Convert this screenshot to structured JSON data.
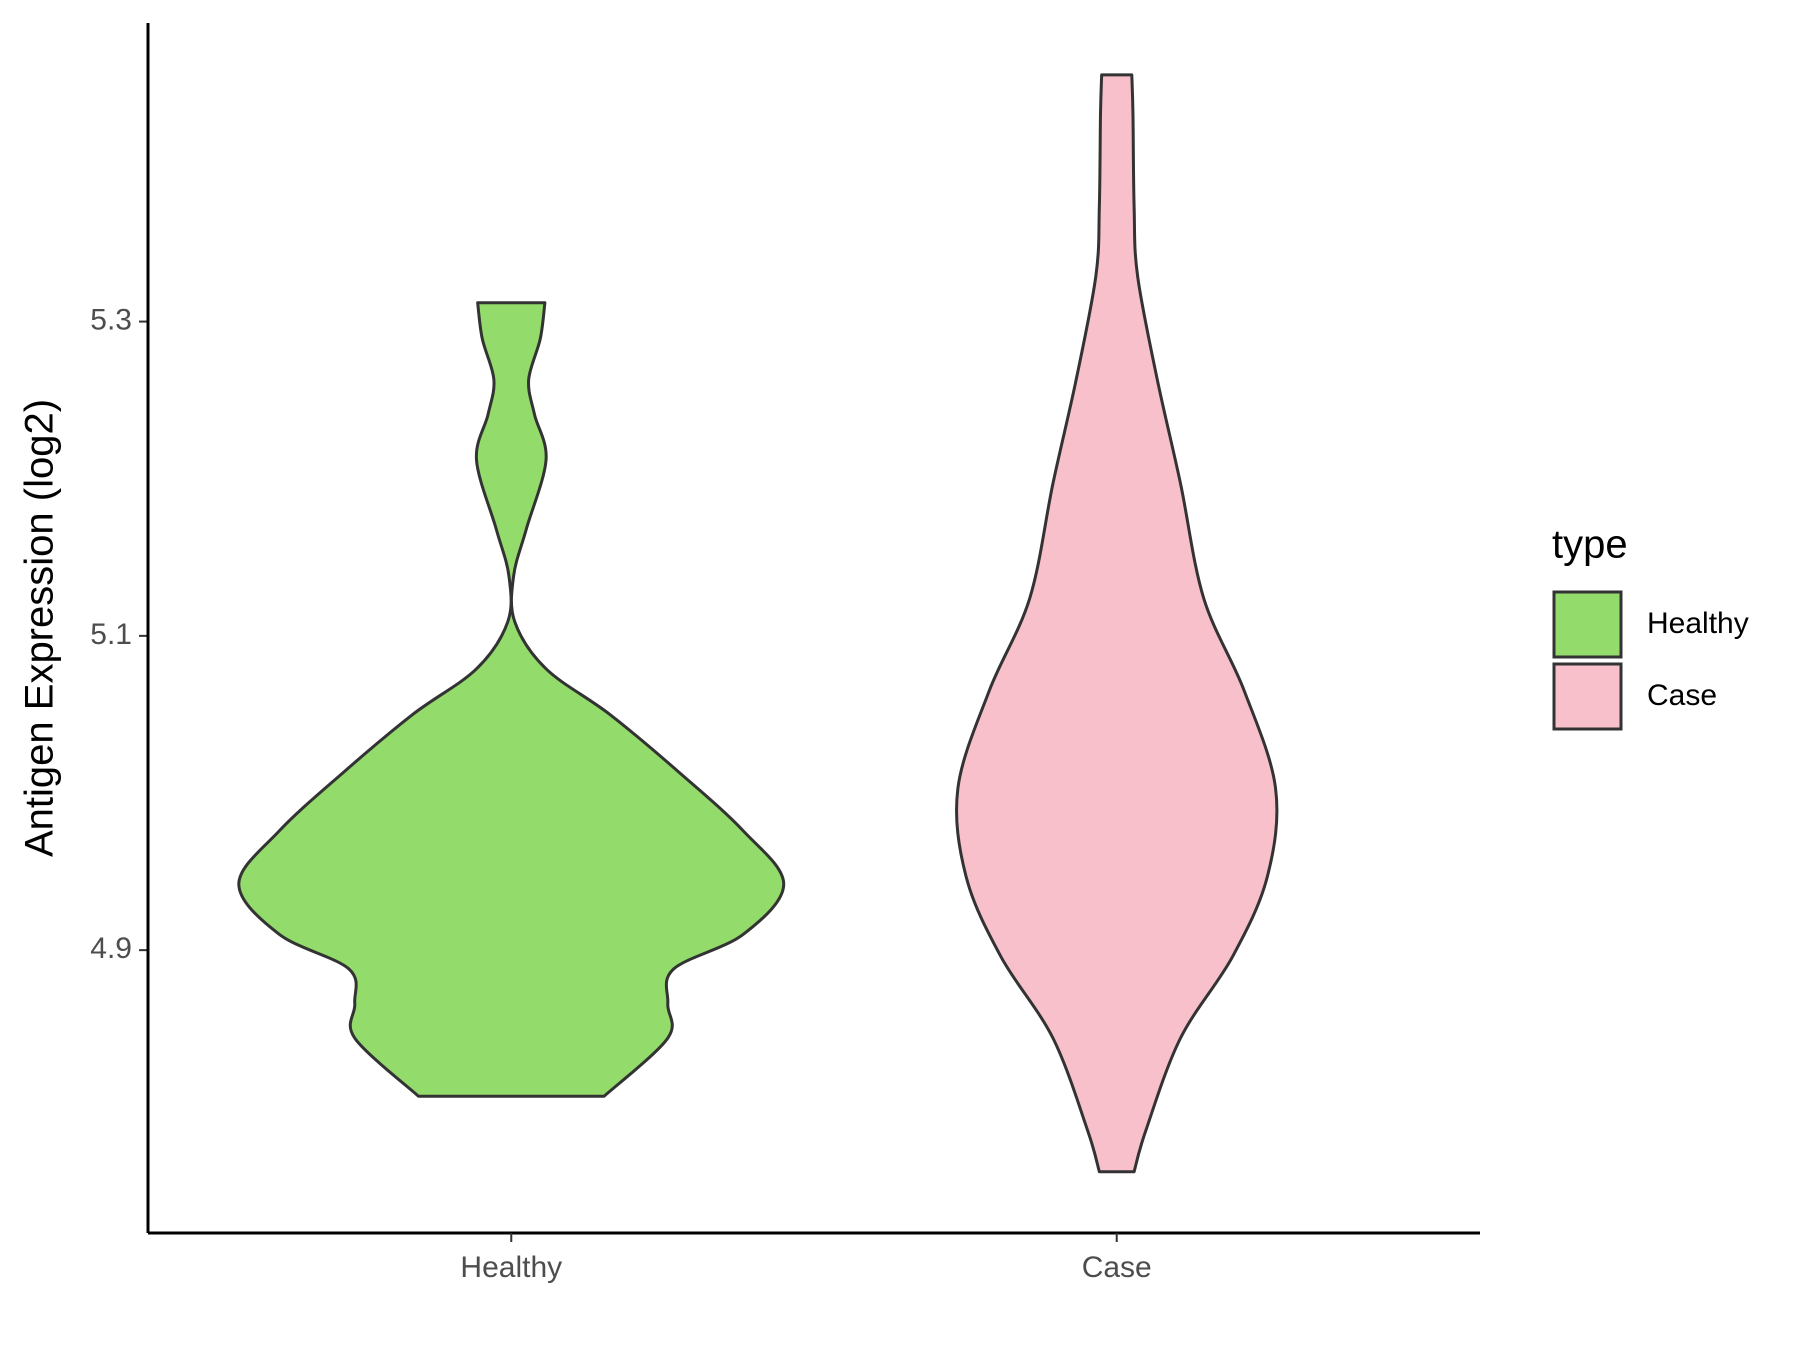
{
  "chart_data": {
    "type": "violin",
    "y_label": "Antigen Expression (log2)",
    "categories": [
      "Healthy",
      "Case"
    ],
    "ylim": [
      4.72,
      5.49
    ],
    "yticks": [
      4.9,
      5.1,
      5.3
    ],
    "legend_title": "type",
    "legend": "right",
    "series": [
      {
        "name": "Healthy",
        "color": "#93dc6b",
        "y": [
          4.807,
          4.844,
          4.866,
          4.888,
          4.91,
          4.942,
          4.976,
          5.013,
          5.05,
          5.079,
          5.109,
          5.138,
          5.168,
          5.212,
          5.241,
          5.263,
          5.289,
          5.312
        ],
        "density": [
          80,
          135,
          135,
          140,
          200,
          235,
          200,
          145,
          85,
          30,
          3,
          2,
          13,
          30,
          20,
          15,
          25,
          29
        ]
      },
      {
        "name": "Case",
        "color": "#f7c0cb",
        "y": [
          4.759,
          4.785,
          4.844,
          4.896,
          4.947,
          5.003,
          5.065,
          5.124,
          5.197,
          5.263,
          5.329,
          5.373,
          5.432,
          5.457
        ],
        "density": [
          15,
          25,
          55,
          100,
          130,
          137,
          110,
          75,
          55,
          35,
          18,
          15,
          14,
          13
        ]
      }
    ]
  }
}
